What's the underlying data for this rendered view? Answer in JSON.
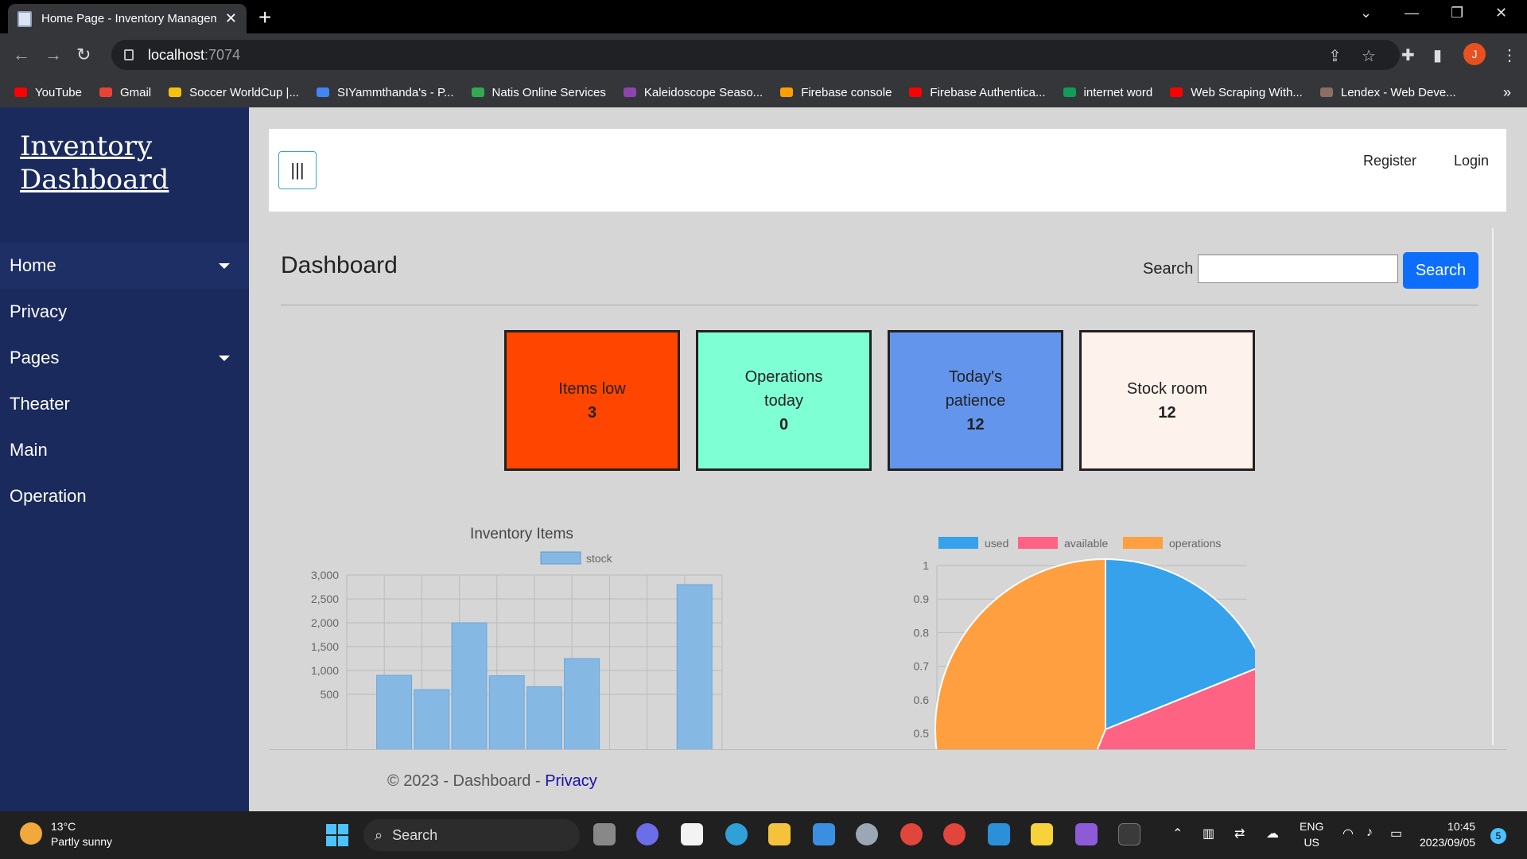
{
  "browser": {
    "tab_title": "Home Page - Inventory Managem",
    "url_host": "localhost",
    "url_port": ":7074",
    "profile_initial": "J",
    "bookmarks": [
      {
        "label": "YouTube",
        "color": "#ff0000"
      },
      {
        "label": "Gmail",
        "color": "#ea4335"
      },
      {
        "label": "Soccer WorldCup |...",
        "color": "#f4c20d"
      },
      {
        "label": "SIYammthanda's - P...",
        "color": "#4285f4"
      },
      {
        "label": "Natis Online Services",
        "color": "#34a853"
      },
      {
        "label": "Kaleidoscope Seaso...",
        "color": "#8e44ad"
      },
      {
        "label": "Firebase console",
        "color": "#ffa000"
      },
      {
        "label": "Firebase Authentica...",
        "color": "#ff0000"
      },
      {
        "label": "internet word",
        "color": "#0f9d58"
      },
      {
        "label": "Web Scraping With...",
        "color": "#ff0000"
      },
      {
        "label": "Lendex - Web Deve...",
        "color": "#8d6e63"
      }
    ]
  },
  "sidebar": {
    "brand": "Inventory Dashboard",
    "items": [
      {
        "label": "Home"
      },
      {
        "label": "Privacy"
      },
      {
        "label": "Pages"
      },
      {
        "label": "Theater"
      },
      {
        "label": "Main"
      },
      {
        "label": "Operation"
      }
    ]
  },
  "topnav": {
    "toggle": "|||",
    "register": "Register",
    "login": "Login"
  },
  "main": {
    "title": "Dashboard",
    "search_label": "Search",
    "search_button": "Search",
    "cards": [
      {
        "label": "Items low",
        "value": "3",
        "color": "#ff4500"
      },
      {
        "label": "Operations today",
        "value": "0",
        "color": "#7fffd4"
      },
      {
        "label": "Today's patience",
        "value": "12",
        "color": "#6495ed"
      },
      {
        "label": "Stock room",
        "value": "12",
        "color": "#fdf2ec"
      }
    ]
  },
  "chart_data": [
    {
      "type": "bar",
      "title": "Inventory Items",
      "legend": [
        "stock"
      ],
      "yticks": [
        "3,000",
        "2,500",
        "2,000",
        "1,500",
        "1,000",
        "500"
      ],
      "ylim": [
        0,
        3000
      ],
      "values": [
        900,
        600,
        2000,
        890,
        660,
        1250,
        0,
        0,
        2800
      ],
      "color": "#86b8e4"
    },
    {
      "type": "pie",
      "legend": [
        {
          "label": "used",
          "color": "#36a2eb"
        },
        {
          "label": "available",
          "color": "#ff6384"
        },
        {
          "label": "operations",
          "color": "#ff9f40"
        }
      ],
      "yticks": [
        "1",
        "0.9",
        "0.8",
        "0.7",
        "0.6",
        "0.5"
      ]
    }
  ],
  "footer": {
    "text": "© 2023 - Dashboard - ",
    "link": "Privacy"
  },
  "taskbar": {
    "temp": "13°C",
    "weather": "Partly sunny",
    "search": "Search",
    "lang1": "ENG",
    "lang2": "US",
    "time": "10:45",
    "date": "2023/09/05",
    "notifications": "5"
  }
}
